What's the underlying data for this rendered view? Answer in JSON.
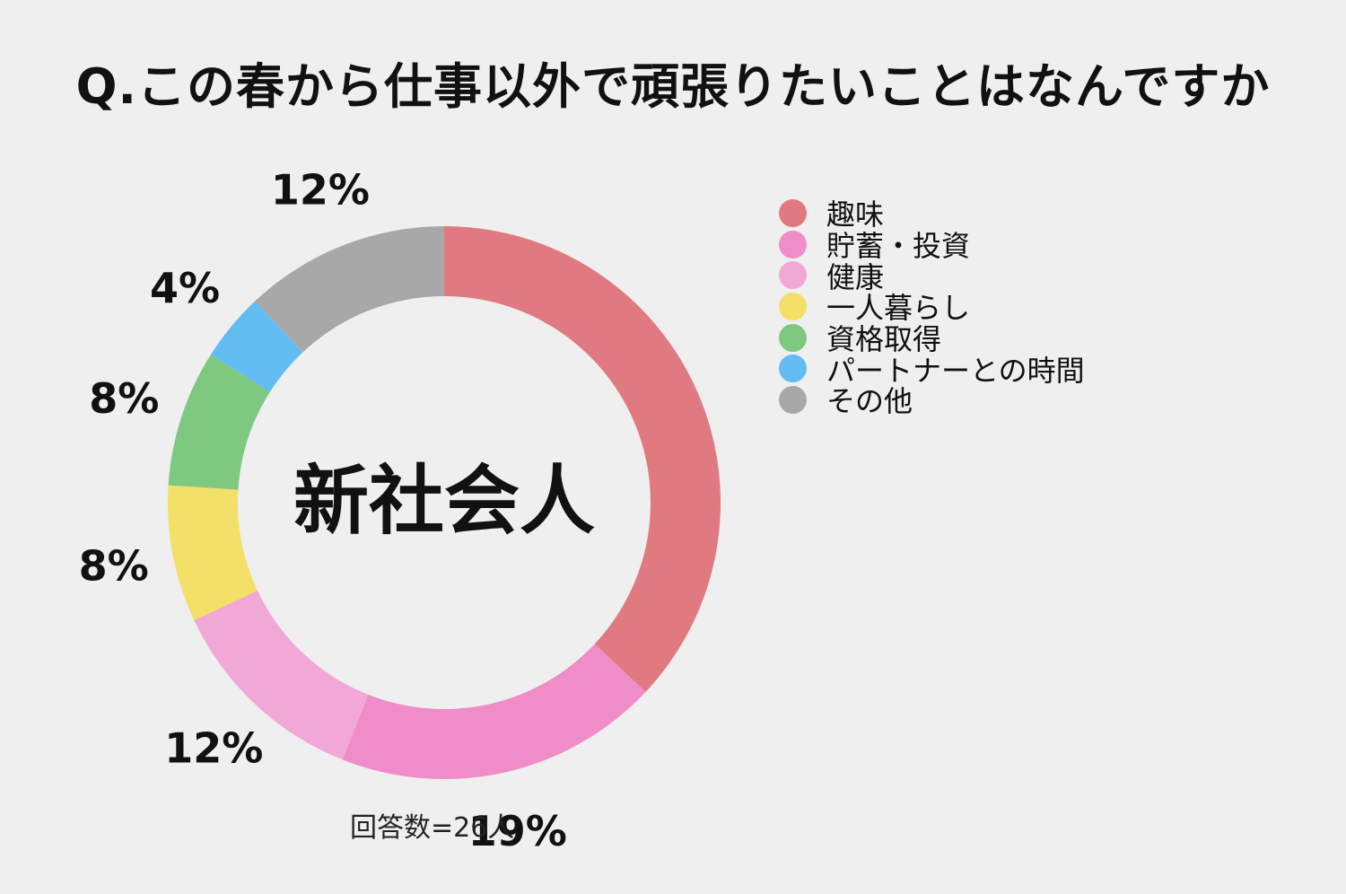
{
  "title": "Q.この春から仕事以外で頑張りたいことはなんですか",
  "note": "回答数=26人",
  "chart_data": {
    "type": "donut",
    "center_label": "新社会人",
    "legend_position": "right",
    "series": [
      {
        "name": "趣味",
        "value": 37,
        "label": "",
        "color": "#e07a80"
      },
      {
        "name": "貯蓄・投資",
        "value": 19,
        "label": "19%",
        "color": "#f08cc8"
      },
      {
        "name": "健康",
        "value": 12,
        "label": "12%",
        "color": "#f2a8d6"
      },
      {
        "name": "一人暮らし",
        "value": 8,
        "label": "8%",
        "color": "#f2e068"
      },
      {
        "name": "資格取得",
        "value": 8,
        "label": "8%",
        "color": "#7ec880"
      },
      {
        "name": "パートナーとの時間",
        "value": 4,
        "label": "4%",
        "color": "#62bdf2"
      },
      {
        "name": "その他",
        "value": 12,
        "label": "12%",
        "color": "#a8a8a8"
      }
    ]
  }
}
